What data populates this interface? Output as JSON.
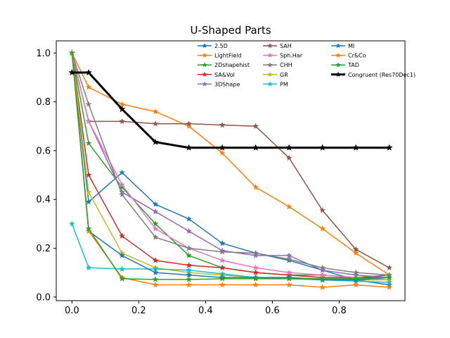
{
  "chart_data": {
    "type": "line",
    "title": "U-Shaped Parts",
    "xlabel": "",
    "ylabel": "",
    "xlim": [
      -0.047,
      0.997
    ],
    "ylim": [
      -0.015,
      1.05
    ],
    "xticks": [
      0.0,
      0.2,
      0.4,
      0.6,
      0.8
    ],
    "xtick_labels": [
      "0.0",
      "0.2",
      "0.4",
      "0.6",
      "0.8"
    ],
    "yticks": [
      0.0,
      0.2,
      0.4,
      0.6,
      0.8,
      1.0
    ],
    "ytick_labels": [
      "0.0",
      "0.2",
      "0.4",
      "0.6",
      "0.8",
      "1.0"
    ],
    "grid": false,
    "legend_position": "top-right",
    "legend_columns": 3,
    "x": [
      0.0,
      0.05,
      0.15,
      0.25,
      0.35,
      0.45,
      0.55,
      0.65,
      0.75,
      0.85,
      0.95
    ],
    "series": [
      {
        "name": "2.5D",
        "color": "#1f77b4",
        "marker": "star",
        "linewidth": 1.5,
        "values": [
          1.0,
          0.39,
          0.51,
          0.38,
          0.32,
          0.22,
          0.18,
          0.15,
          0.11,
          0.07,
          0.05
        ]
      },
      {
        "name": "LightField",
        "color": "#ff7f0e",
        "marker": "star",
        "linewidth": 1.5,
        "values": [
          1.0,
          0.86,
          0.79,
          0.76,
          0.7,
          0.59,
          0.45,
          0.37,
          0.28,
          0.18,
          0.09
        ]
      },
      {
        "name": "2Dshapehist",
        "color": "#2ca02c",
        "marker": "star",
        "linewidth": 1.5,
        "values": [
          1.0,
          0.63,
          0.45,
          0.3,
          0.17,
          0.12,
          0.1,
          0.09,
          0.09,
          0.08,
          0.09
        ]
      },
      {
        "name": "SA&Vol",
        "color": "#d62728",
        "marker": "star",
        "linewidth": 1.5,
        "values": [
          1.0,
          0.5,
          0.25,
          0.15,
          0.13,
          0.12,
          0.1,
          0.09,
          0.08,
          0.08,
          0.08
        ]
      },
      {
        "name": "3DShape",
        "color": "#9467bd",
        "marker": "star",
        "linewidth": 1.5,
        "values": [
          1.0,
          0.72,
          0.43,
          0.35,
          0.27,
          0.19,
          0.17,
          0.17,
          0.11,
          0.09,
          0.08
        ]
      },
      {
        "name": "SAH",
        "color": "#8c564b",
        "marker": "star",
        "linewidth": 1.5,
        "values": [
          1.0,
          0.72,
          0.72,
          0.71,
          0.71,
          0.705,
          0.7,
          0.57,
          0.355,
          0.195,
          0.12
        ]
      },
      {
        "name": "Sph.Har",
        "color": "#e377c2",
        "marker": "star",
        "linewidth": 1.5,
        "values": [
          1.0,
          0.72,
          0.46,
          0.28,
          0.2,
          0.15,
          0.12,
          0.1,
          0.09,
          0.08,
          0.07
        ]
      },
      {
        "name": "CHH",
        "color": "#7f7f7f",
        "marker": "star",
        "linewidth": 1.5,
        "values": [
          1.0,
          0.79,
          0.42,
          0.245,
          0.2,
          0.185,
          0.18,
          0.155,
          0.12,
          0.1,
          0.09
        ]
      },
      {
        "name": "GR",
        "color": "#bcbd22",
        "marker": "star",
        "linewidth": 1.5,
        "values": [
          1.0,
          0.43,
          0.18,
          0.12,
          0.1,
          0.09,
          0.08,
          0.08,
          0.075,
          0.07,
          0.07
        ]
      },
      {
        "name": "PM",
        "color": "#17becf",
        "marker": "star",
        "linewidth": 1.5,
        "values": [
          0.3,
          0.12,
          0.115,
          0.115,
          0.11,
          0.095,
          0.08,
          0.075,
          0.07,
          0.065,
          0.06
        ]
      },
      {
        "name": "MI",
        "color": "#1f77b4",
        "marker": "star",
        "linewidth": 1.5,
        "values": [
          1.0,
          0.27,
          0.17,
          0.1,
          0.09,
          0.08,
          0.08,
          0.08,
          0.07,
          0.07,
          0.08
        ]
      },
      {
        "name": "Cr&Co",
        "color": "#ff7f0e",
        "marker": "star",
        "linewidth": 1.5,
        "values": [
          1.0,
          0.27,
          0.08,
          0.05,
          0.05,
          0.05,
          0.05,
          0.05,
          0.04,
          0.05,
          0.04
        ]
      },
      {
        "name": "TAD",
        "color": "#2ca02c",
        "marker": "star",
        "linewidth": 1.5,
        "values": [
          1.0,
          0.28,
          0.075,
          0.072,
          0.072,
          0.075,
          0.075,
          0.075,
          0.075,
          0.075,
          0.08
        ]
      },
      {
        "name": "Congruent (Res70Dec1)",
        "color": "#000000",
        "marker": "star",
        "linewidth": 3,
        "values": [
          0.92,
          0.92,
          0.77,
          0.635,
          0.612,
          0.612,
          0.612,
          0.612,
          0.612,
          0.612,
          0.612
        ]
      }
    ]
  }
}
